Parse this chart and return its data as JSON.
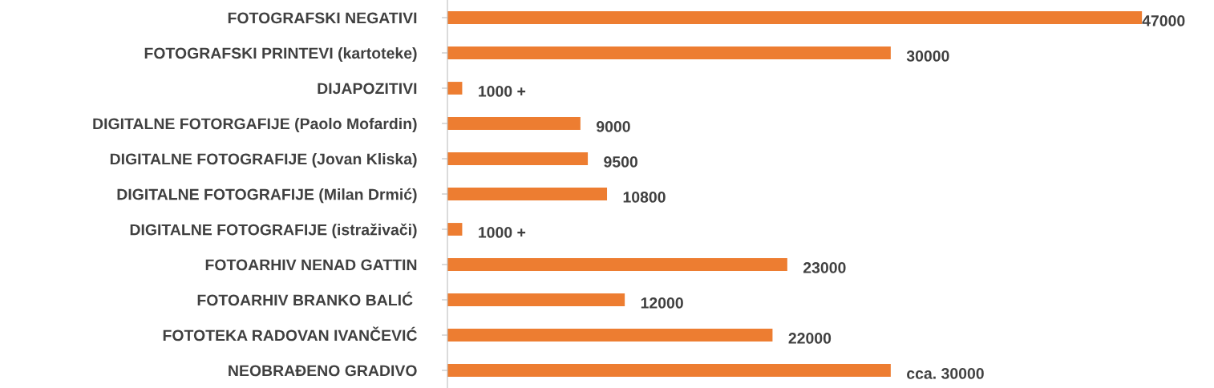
{
  "chart_data": {
    "type": "bar",
    "orientation": "horizontal",
    "categories": [
      "FOTOGRAFSKI NEGATIVI",
      "FOTOGRAFSKI PRINTEVI (kartoteke)",
      "DIJAPOZITIVI",
      "DIGITALNE FOTORGAFIJE (Paolo Mofardin)",
      "DIGITALNE FOTOGRAFIJE (Jovan Kliska)",
      "DIGITALNE FOTOGRAFIJE (Milan Drmić)",
      "DIGITALNE FOTOGRAFIJE (istraživači)",
      "FOTOARHIV NENAD GATTIN",
      "FOTOARHIV BRANKO BALIĆ ",
      "FOTOTEKA RADOVAN IVANČEVIĆ",
      "NEOBRAĐENO GRADIVO"
    ],
    "values": [
      47000,
      30000,
      1000,
      9000,
      9500,
      10800,
      1000,
      23000,
      12000,
      22000,
      30000
    ],
    "value_labels": [
      "47000",
      "30000",
      "1000 +",
      "9000",
      "9500",
      "10800",
      "1000 +",
      "23000",
      "12000",
      "22000",
      "cca. 30000"
    ],
    "color": "#ed7d31",
    "grid": false,
    "legend": false
  }
}
